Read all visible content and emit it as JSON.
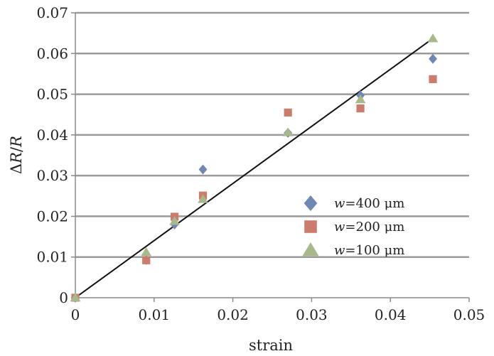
{
  "chart_data": {
    "type": "scatter",
    "title": "",
    "xlabel": "strain",
    "ylabel": {
      "delta": "Δ",
      "var1": "R",
      "slash": "/",
      "var2": "R"
    },
    "xlim": [
      0,
      0.05
    ],
    "ylim": [
      0,
      0.07
    ],
    "x_ticks": [
      "0",
      "0.01",
      "0.02",
      "0.03",
      "0.04",
      "0.05"
    ],
    "y_ticks": [
      "0",
      "0.01",
      "0.02",
      "0.03",
      "0.04",
      "0.05",
      "0.06",
      "0.07"
    ],
    "grid": {
      "horizontal": true,
      "vertical": false
    },
    "legend_position": "right-middle",
    "series": [
      {
        "name": {
          "var": "w",
          "rest": "=400 μm"
        },
        "marker": "diamond",
        "color": "#6f87b4",
        "x": [
          0,
          0.009,
          0.0126,
          0.0162,
          0.027,
          0.0362,
          0.0454
        ],
        "y": [
          0,
          0.0093,
          0.018,
          0.0315,
          0.0405,
          0.0497,
          0.0587
        ]
      },
      {
        "name": {
          "var": "w",
          "rest": "=200 μm"
        },
        "marker": "square",
        "color": "#cd7b6b",
        "x": [
          0,
          0.009,
          0.0126,
          0.0162,
          0.027,
          0.0362,
          0.0454
        ],
        "y": [
          0,
          0.0092,
          0.0199,
          0.0251,
          0.0455,
          0.0465,
          0.0537
        ]
      },
      {
        "name": {
          "var": "w",
          "rest": "=100 μm"
        },
        "marker": "triangle",
        "color": "#a7b98a",
        "x": [
          0,
          0.009,
          0.0126,
          0.0162,
          0.027,
          0.0362,
          0.0454
        ],
        "y": [
          0,
          0.0112,
          0.0188,
          0.0242,
          0.0406,
          0.0487,
          0.0637
        ]
      }
    ],
    "fit_line": {
      "x": [
        0,
        0.0454
      ],
      "y": [
        0,
        0.0637
      ],
      "color": "#111111"
    }
  }
}
